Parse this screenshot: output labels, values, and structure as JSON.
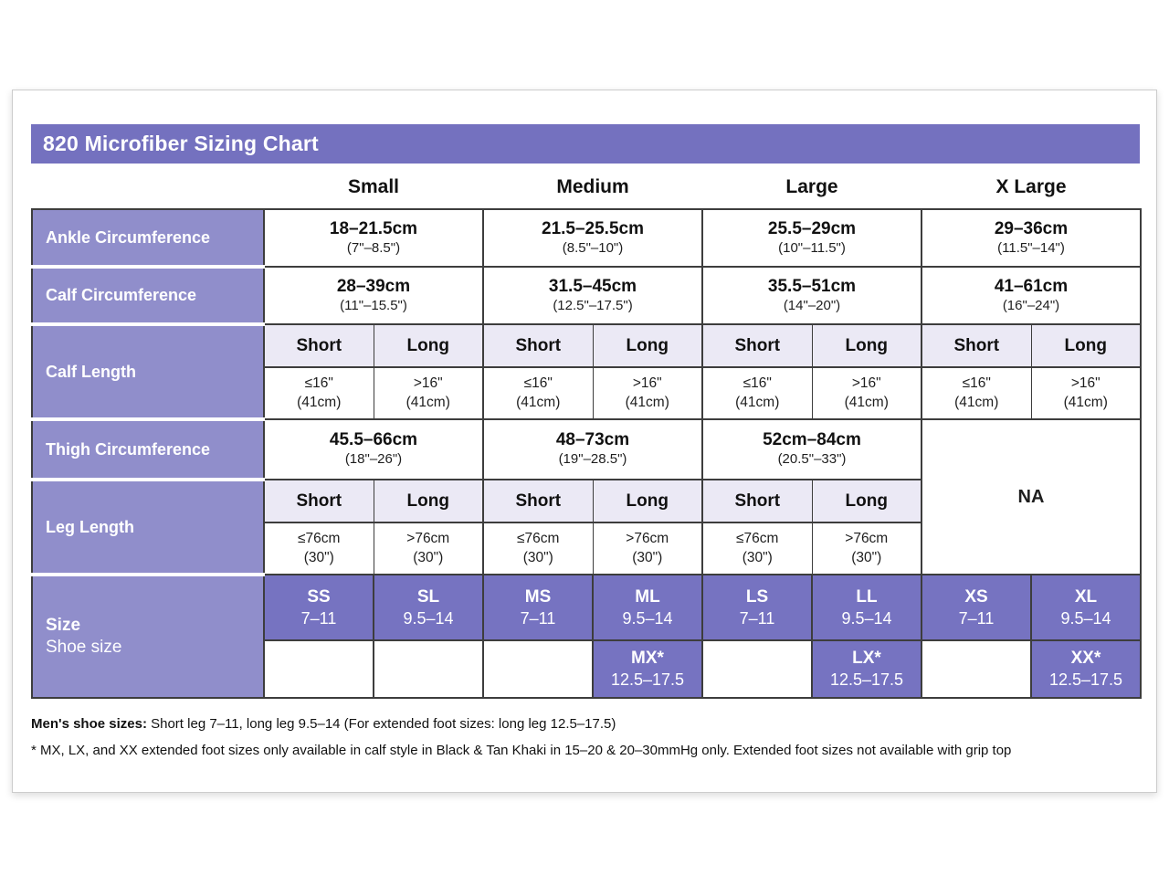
{
  "title": "820 Microfiber Sizing Chart",
  "columns": {
    "small": "Small",
    "medium": "Medium",
    "large": "Large",
    "xlarge": "X Large"
  },
  "sub_headers": {
    "short": "Short",
    "long": "Long"
  },
  "rows": {
    "ankle": {
      "label": "Ankle Circumference",
      "small": {
        "cm": "18–21.5cm",
        "inch": "(7\"–8.5\")"
      },
      "medium": {
        "cm": "21.5–25.5cm",
        "inch": "(8.5\"–10\")"
      },
      "large": {
        "cm": "25.5–29cm",
        "inch": "(10\"–11.5\")"
      },
      "xlarge": {
        "cm": "29–36cm",
        "inch": "(11.5\"–14\")"
      }
    },
    "calf_circumference": {
      "label": "Calf Circumference",
      "small": {
        "cm": "28–39cm",
        "inch": "(11\"–15.5\")"
      },
      "medium": {
        "cm": "31.5–45cm",
        "inch": "(12.5\"–17.5\")"
      },
      "large": {
        "cm": "35.5–51cm",
        "inch": "(14\"–20\")"
      },
      "xlarge": {
        "cm": "41–61cm",
        "inch": "(16\"–24\")"
      }
    },
    "calf_length": {
      "label": "Calf Length",
      "short_value": {
        "line1": "≤16\"",
        "line2": "(41cm)"
      },
      "long_value": {
        "line1": ">16\"",
        "line2": "(41cm)"
      }
    },
    "thigh_circumference": {
      "label": "Thigh Circumference",
      "small": {
        "cm": "45.5–66cm",
        "inch": "(18\"–26\")"
      },
      "medium": {
        "cm": "48–73cm",
        "inch": "(19\"–28.5\")"
      },
      "large": {
        "cm": "52cm–84cm",
        "inch": "(20.5\"–33\")"
      },
      "xlarge_na": "NA"
    },
    "leg_length": {
      "label": "Leg Length",
      "short_value": {
        "line1": "≤76cm",
        "line2": "(30\")"
      },
      "long_value": {
        "line1": ">76cm",
        "line2": "(30\")"
      }
    },
    "size": {
      "label_line1": "Size",
      "label_line2": "Shoe size",
      "row1": [
        {
          "code": "SS",
          "range": "7–11"
        },
        {
          "code": "SL",
          "range": "9.5–14"
        },
        {
          "code": "MS",
          "range": "7–11"
        },
        {
          "code": "ML",
          "range": "9.5–14"
        },
        {
          "code": "LS",
          "range": "7–11"
        },
        {
          "code": "LL",
          "range": "9.5–14"
        },
        {
          "code": "XS",
          "range": "7–11"
        },
        {
          "code": "XL",
          "range": "9.5–14"
        }
      ],
      "row2": {
        "mx": {
          "code": "MX*",
          "range": "12.5–17.5"
        },
        "lx": {
          "code": "LX*",
          "range": "12.5–17.5"
        },
        "xx": {
          "code": "XX*",
          "range": "12.5–17.5"
        }
      }
    }
  },
  "notes": {
    "line1_bold": "Men's shoe sizes:",
    "line1_rest": " Short leg 7–11, long leg 9.5–14 (For extended foot sizes: long leg 12.5–17.5)",
    "line2": "* MX, LX, and XX extended foot sizes only available in calf style in Black & Tan Khaki in 15–20 & 20–30mmHg only. Extended foot sizes not available with grip top"
  },
  "colors": {
    "title_bar": "#7471bf",
    "row_label": "#908ecb",
    "size_chip": "#7673c1",
    "subheader_bg": "#ebe9f5",
    "border": "#3d3d3d"
  }
}
